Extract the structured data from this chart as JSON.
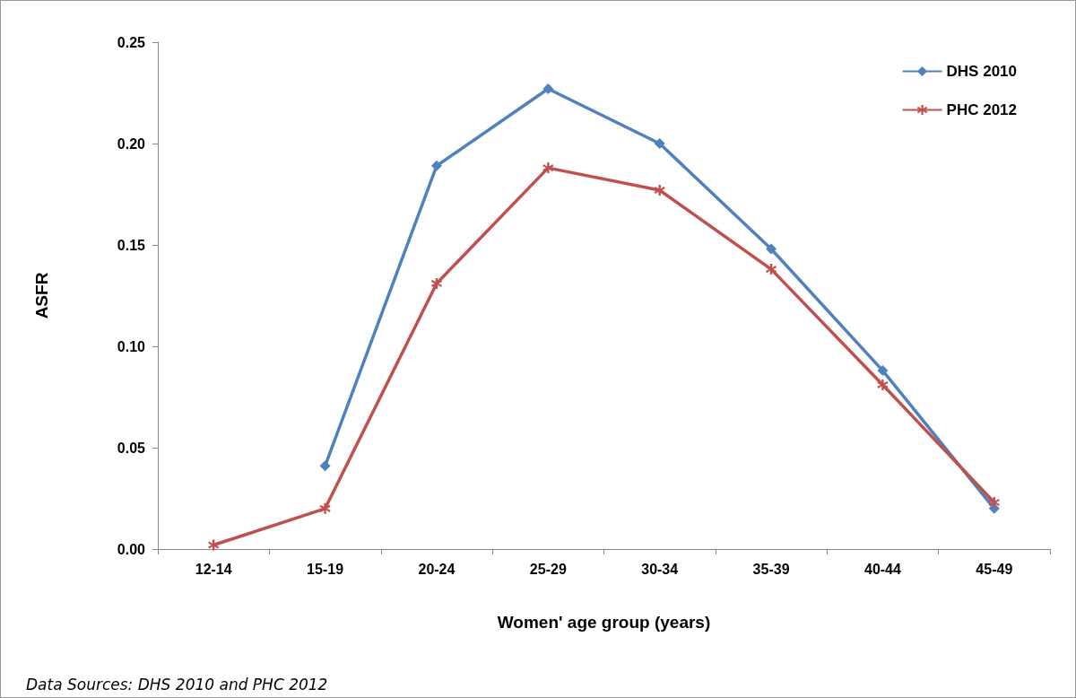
{
  "chart_data": {
    "type": "line",
    "xlabel": "Women' age group (years)",
    "ylabel": "ASFR",
    "categories": [
      "12-14",
      "15-19",
      "20-24",
      "25-29",
      "30-34",
      "35-39",
      "40-44",
      "45-49"
    ],
    "series": [
      {
        "name": "DHS 2010",
        "color": "#4f81bd",
        "marker": "diamond",
        "values": [
          null,
          0.041,
          0.189,
          0.227,
          0.2,
          0.148,
          0.088,
          0.02
        ]
      },
      {
        "name": "PHC 2012",
        "color": "#c0504d",
        "marker": "cross",
        "values": [
          0.002,
          0.02,
          0.131,
          0.188,
          0.177,
          0.138,
          0.081,
          0.023
        ]
      }
    ],
    "ylim": [
      0,
      0.25
    ],
    "yticks": [
      {
        "value": 0,
        "label": "0.00"
      },
      {
        "value": 0.05,
        "label": "0.05"
      },
      {
        "value": 0.1,
        "label": "0.10"
      },
      {
        "value": 0.15,
        "label": "0.15"
      },
      {
        "value": 0.2,
        "label": "0.20"
      },
      {
        "value": 0.25,
        "label": "0.25"
      }
    ],
    "grid": false,
    "legend": "top right",
    "line_style": "solid",
    "annotations": [
      "Data Sources: DHS 2010 and PHC 2012"
    ]
  }
}
